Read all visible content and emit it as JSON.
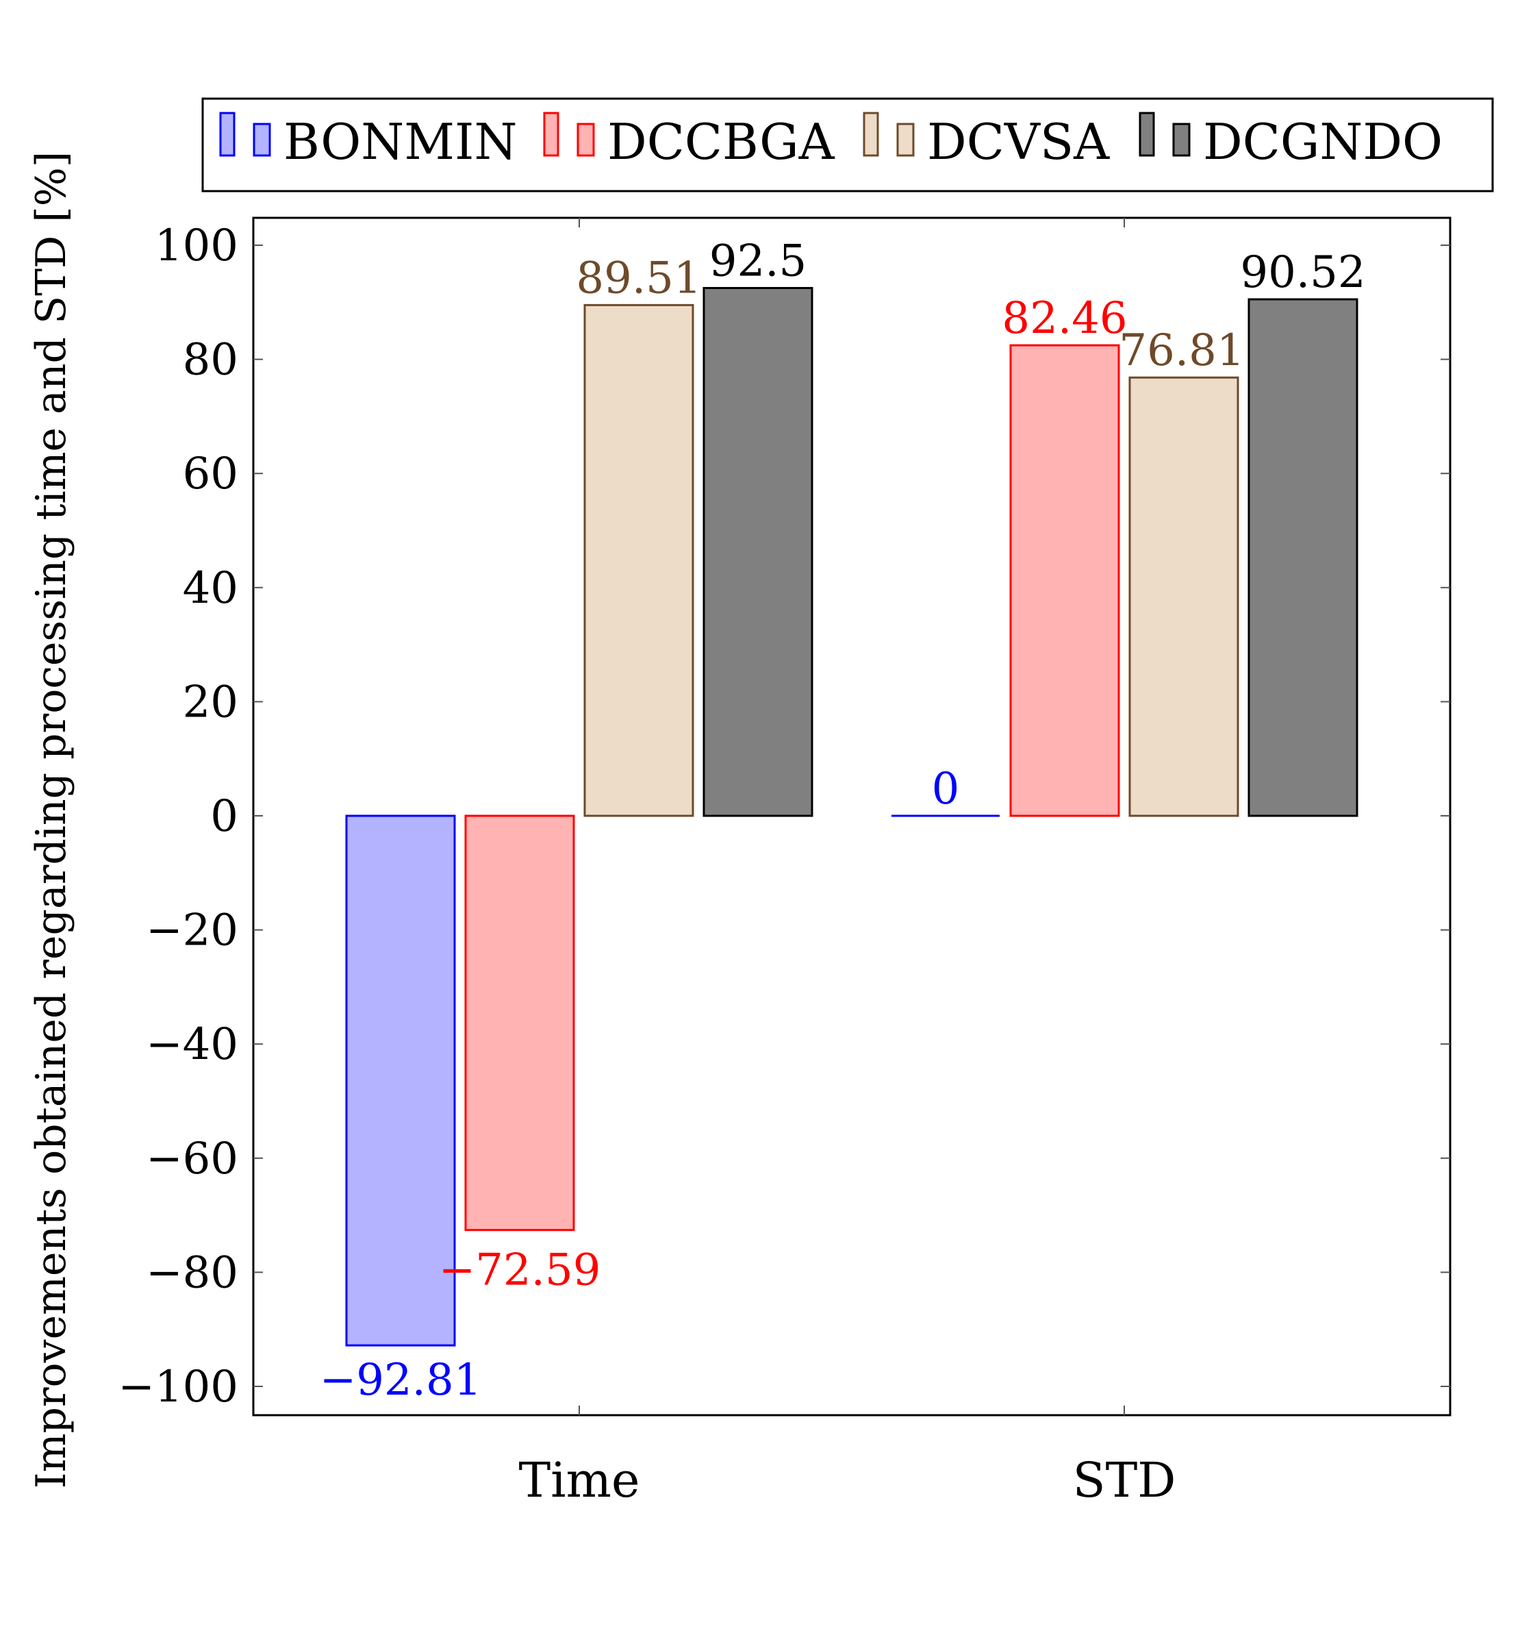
{
  "chart_data": {
    "type": "bar",
    "title": "",
    "xlabel": "",
    "ylabel": "Improvements obtained regarding processing time and STD [%]",
    "categories": [
      "Time",
      "STD"
    ],
    "ylim": [
      -105,
      105
    ],
    "yticks": [
      100,
      80,
      60,
      40,
      20,
      0,
      -20,
      -40,
      -60,
      -80,
      -100
    ],
    "ytick_labels": [
      "100",
      "80",
      "60",
      "40",
      "20",
      "0",
      "−20",
      "−40",
      "−60",
      "−80",
      "−100"
    ],
    "grid": false,
    "legend_position": "top (above plot)",
    "series": [
      {
        "name": "BONMIN",
        "values": [
          -92.81,
          0
        ],
        "value_labels": [
          "−92.81",
          "0"
        ],
        "fill": "#b3b3ff",
        "stroke": "#0000ff",
        "label_color": "#0000ff"
      },
      {
        "name": "DCCBGA",
        "values": [
          -72.59,
          82.46
        ],
        "value_labels": [
          "−72.59",
          "82.46"
        ],
        "fill": "#ffb3b3",
        "stroke": "#ff0000",
        "label_color": "#ff0000"
      },
      {
        "name": "DCVSA",
        "values": [
          89.51,
          76.81
        ],
        "value_labels": [
          "89.51",
          "76.81"
        ],
        "fill": "#ecdcc8",
        "stroke": "#6e4a2a",
        "label_color": "#6e4a2a"
      },
      {
        "name": "DCGNDO",
        "values": [
          92.5,
          90.52
        ],
        "value_labels": [
          "92.5",
          "90.52"
        ],
        "fill": "#808080",
        "stroke": "#000000",
        "label_color": "#000000"
      }
    ]
  }
}
